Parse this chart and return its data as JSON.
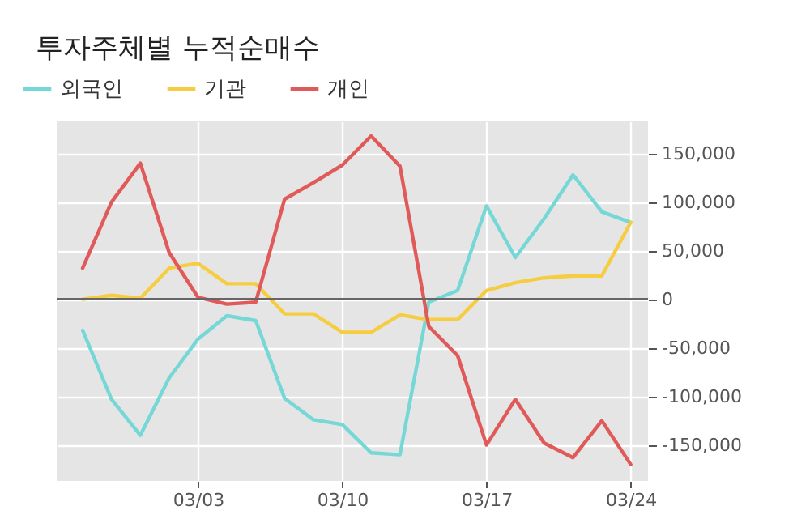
{
  "chart_data": {
    "type": "line",
    "title": "투자주체별 누적순매수",
    "categories": [
      null,
      null,
      null,
      null,
      "03/03",
      null,
      null,
      null,
      null,
      "03/10",
      null,
      null,
      null,
      null,
      "03/17",
      null,
      null,
      null,
      null,
      "03/24"
    ],
    "series": [
      {
        "name": "외국인",
        "color": "#76d7d7",
        "values": [
          -32000,
          -103000,
          -140000,
          -81000,
          -41000,
          -17000,
          -22000,
          -102000,
          -124000,
          -129000,
          -158000,
          -160000,
          -3000,
          9000,
          96000,
          43000,
          83000,
          128000,
          90000,
          79000
        ]
      },
      {
        "name": "기관",
        "color": "#f6cd40",
        "values": [
          0,
          4000,
          1000,
          32000,
          37000,
          16000,
          16000,
          -15000,
          -15000,
          -34000,
          -34000,
          -16000,
          -21000,
          -21000,
          9000,
          17000,
          22000,
          24000,
          24000,
          79000
        ]
      },
      {
        "name": "개인",
        "color": "#e05a5a",
        "values": [
          32000,
          100000,
          140000,
          48000,
          2000,
          -5000,
          -3000,
          103000,
          120000,
          138000,
          168000,
          137000,
          -28000,
          -58000,
          -150000,
          -103000,
          -148000,
          -163000,
          -125000,
          -170000
        ]
      }
    ],
    "ylim": [
      -187000,
      183000
    ],
    "yticks": [
      {
        "value": -150000,
        "label": "-150,000"
      },
      {
        "value": -100000,
        "label": "-100,000"
      },
      {
        "value": -50000,
        "label": "-50,000"
      },
      0,
      {
        "value": 50000,
        "label": "50,000"
      },
      {
        "value": 100000,
        "label": "100,000"
      },
      {
        "value": 150000,
        "label": "150,000"
      }
    ],
    "ref_lines": [
      {
        "axis": "y",
        "value": 0,
        "color": "#666666"
      }
    ],
    "grid": true,
    "legend": "top left",
    "marker": "none",
    "line_style": "solid"
  }
}
